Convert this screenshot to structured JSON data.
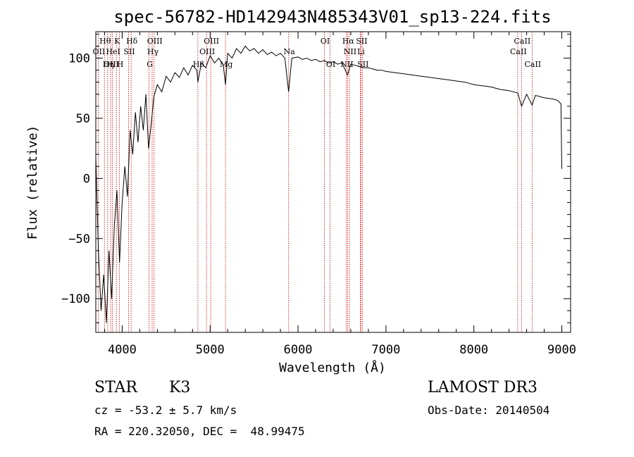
{
  "chart_data": {
    "type": "line",
    "title": "spec-56782-HD142943N485343V01_sp13-224.fits",
    "xlabel": "Wavelength (Å)",
    "ylabel": "Flux (relative)",
    "xlim": [
      3700,
      9100
    ],
    "ylim": [
      -128,
      122
    ],
    "x_ticks": [
      4000,
      5000,
      6000,
      7000,
      8000,
      9000
    ],
    "y_ticks": [
      -100,
      -50,
      0,
      50,
      100
    ],
    "grid": false,
    "series": [
      {
        "points": [
          [
            3700,
            18
          ],
          [
            3730,
            -60
          ],
          [
            3760,
            -110
          ],
          [
            3790,
            -80
          ],
          [
            3820,
            -120
          ],
          [
            3850,
            -60
          ],
          [
            3880,
            -100
          ],
          [
            3910,
            -40
          ],
          [
            3940,
            -10
          ],
          [
            3970,
            -70
          ],
          [
            4000,
            -20
          ],
          [
            4030,
            10
          ],
          [
            4060,
            -15
          ],
          [
            4090,
            40
          ],
          [
            4120,
            20
          ],
          [
            4150,
            55
          ],
          [
            4180,
            30
          ],
          [
            4210,
            60
          ],
          [
            4240,
            40
          ],
          [
            4270,
            70
          ],
          [
            4300,
            25
          ],
          [
            4330,
            45
          ],
          [
            4360,
            68
          ],
          [
            4400,
            78
          ],
          [
            4450,
            72
          ],
          [
            4500,
            85
          ],
          [
            4550,
            80
          ],
          [
            4600,
            88
          ],
          [
            4650,
            84
          ],
          [
            4700,
            92
          ],
          [
            4750,
            86
          ],
          [
            4800,
            94
          ],
          [
            4850,
            90
          ],
          [
            4861,
            80
          ],
          [
            4900,
            96
          ],
          [
            4950,
            92
          ],
          [
            5000,
            102
          ],
          [
            5050,
            96
          ],
          [
            5100,
            100
          ],
          [
            5150,
            94
          ],
          [
            5175,
            78
          ],
          [
            5200,
            104
          ],
          [
            5250,
            100
          ],
          [
            5300,
            108
          ],
          [
            5350,
            104
          ],
          [
            5400,
            110
          ],
          [
            5450,
            106
          ],
          [
            5500,
            108
          ],
          [
            5550,
            104
          ],
          [
            5600,
            107
          ],
          [
            5650,
            103
          ],
          [
            5700,
            105
          ],
          [
            5750,
            102
          ],
          [
            5800,
            104
          ],
          [
            5850,
            100
          ],
          [
            5893,
            72
          ],
          [
            5930,
            100
          ],
          [
            6000,
            101
          ],
          [
            6050,
            99
          ],
          [
            6100,
            100
          ],
          [
            6150,
            98
          ],
          [
            6200,
            99
          ],
          [
            6250,
            97
          ],
          [
            6300,
            98
          ],
          [
            6350,
            96
          ],
          [
            6400,
            97
          ],
          [
            6450,
            95
          ],
          [
            6500,
            96
          ],
          [
            6563,
            86
          ],
          [
            6600,
            95
          ],
          [
            6650,
            94
          ],
          [
            6700,
            93
          ],
          [
            6750,
            92
          ],
          [
            6800,
            92
          ],
          [
            6850,
            91
          ],
          [
            6900,
            90
          ],
          [
            6950,
            90
          ],
          [
            7000,
            89
          ],
          [
            7100,
            88
          ],
          [
            7200,
            87
          ],
          [
            7300,
            86
          ],
          [
            7400,
            85
          ],
          [
            7500,
            84
          ],
          [
            7600,
            83
          ],
          [
            7700,
            82
          ],
          [
            7800,
            81
          ],
          [
            7900,
            80
          ],
          [
            8000,
            78
          ],
          [
            8100,
            77
          ],
          [
            8200,
            76
          ],
          [
            8300,
            74
          ],
          [
            8400,
            73
          ],
          [
            8500,
            71
          ],
          [
            8542,
            60
          ],
          [
            8600,
            70
          ],
          [
            8662,
            61
          ],
          [
            8700,
            69
          ],
          [
            8800,
            67
          ],
          [
            8900,
            66
          ],
          [
            8950,
            65
          ],
          [
            8990,
            62
          ],
          [
            9000,
            8
          ]
        ]
      }
    ],
    "line_markers": [
      {
        "label": "Hθ",
        "wave": 3798,
        "row": 0
      },
      {
        "label": "OII",
        "wave": 3727,
        "row": 1
      },
      {
        "label": "OIII",
        "wave": 3869,
        "row": 2
      },
      {
        "label": "Hη",
        "wave": 3835,
        "row": 2
      },
      {
        "label": "K",
        "wave": 3934,
        "row": 0
      },
      {
        "label": "HeI",
        "wave": 3889,
        "row": 1
      },
      {
        "label": "H",
        "wave": 3969,
        "row": 2
      },
      {
        "label": "Hδ",
        "wave": 4102,
        "row": 0
      },
      {
        "label": "SII",
        "wave": 4072,
        "row": 1
      },
      {
        "label": "OIII",
        "wave": 4363,
        "row": 0
      },
      {
        "label": "Hγ",
        "wave": 4341,
        "row": 1
      },
      {
        "label": "G",
        "wave": 4305,
        "row": 2
      },
      {
        "label": "Hβ",
        "wave": 4861,
        "row": 2
      },
      {
        "label": "OIII",
        "wave": 5007,
        "row": 0
      },
      {
        "label": "OIII",
        "wave": 4959,
        "row": 1
      },
      {
        "label": "Mg",
        "wave": 5175,
        "row": 2
      },
      {
        "label": "Na",
        "wave": 5893,
        "row": 1
      },
      {
        "label": "OI",
        "wave": 6300,
        "row": 0
      },
      {
        "label": "OI",
        "wave": 6364,
        "row": 2
      },
      {
        "label": "Hα",
        "wave": 6563,
        "row": 0
      },
      {
        "label": "SII",
        "wave": 6716,
        "row": 0
      },
      {
        "label": "NII",
        "wave": 6584,
        "row": 1
      },
      {
        "label": "Li",
        "wave": 6708,
        "row": 1
      },
      {
        "label": "NII",
        "wave": 6548,
        "row": 2
      },
      {
        "label": "SII",
        "wave": 6731,
        "row": 2
      },
      {
        "label": "CaII",
        "wave": 8542,
        "row": 0
      },
      {
        "label": "CaII",
        "wave": 8498,
        "row": 1
      },
      {
        "label": "CaII",
        "wave": 8662,
        "row": 2
      }
    ],
    "colors": {
      "spectrum": "#000000",
      "marker_line": "#cc0000",
      "frame": "#000000"
    }
  },
  "info": {
    "object_class": "STAR",
    "subclass": "K3",
    "survey": "LAMOST DR3",
    "cz": "cz = -53.2 ± 5.7 km/s",
    "obs_date": "Obs-Date: 20140504",
    "coords": "RA = 220.32050, DEC =  48.99475"
  }
}
